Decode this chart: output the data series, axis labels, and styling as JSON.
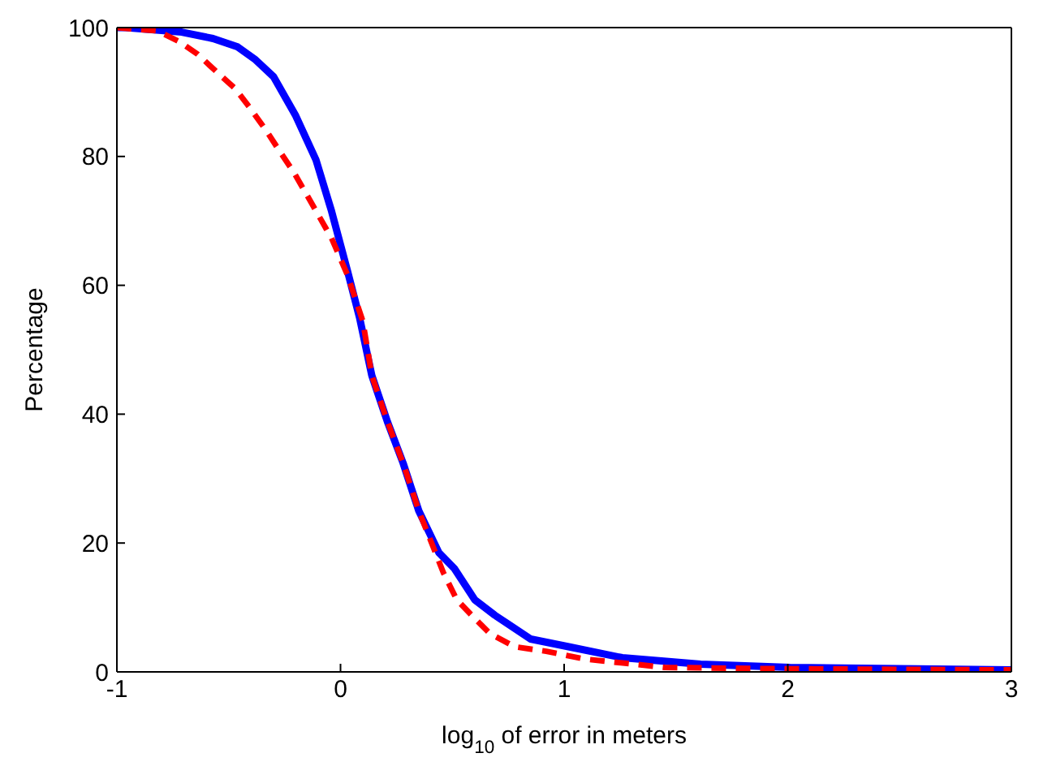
{
  "chart_data": {
    "type": "line",
    "xlabel": "log$_{10}$ of error in meters",
    "ylabel": "Percentage",
    "xlim": [
      -1,
      3
    ],
    "xticks": [
      -1,
      0,
      1,
      2,
      3
    ],
    "ylim": [
      0,
      100
    ],
    "yticks": [
      0,
      20,
      40,
      60,
      80,
      100
    ],
    "grid": false,
    "marker": "none",
    "series": [
      {
        "color": "#0000ff",
        "line_style": "solid",
        "x": [
          -1,
          -0.96,
          -0.71,
          -0.57,
          -0.46,
          -0.38,
          -0.3,
          -0.2,
          -0.11,
          -0.04,
          0.03,
          0.085,
          0.14,
          0.21,
          0.28,
          0.35,
          0.44,
          0.51,
          0.6,
          0.69,
          0.85,
          1.02,
          1.26,
          1.61,
          2.01,
          3
        ],
        "values": [
          100,
          100,
          99.3,
          98.3,
          97,
          95,
          92.4,
          86.3,
          79.5,
          71.5,
          62.4,
          55,
          46,
          38.8,
          32.4,
          25,
          18.5,
          16,
          11.2,
          8.8,
          5.1,
          3.9,
          2.2,
          1.2,
          0.7,
          0.3
        ]
      },
      {
        "color": "#ff0000",
        "line_style": "dashed",
        "x": [
          -1,
          -0.82,
          -0.72,
          -0.64,
          -0.55,
          -0.47,
          -0.4,
          -0.33,
          -0.27,
          -0.21,
          -0.14,
          -0.04,
          0.03,
          0.1,
          0.14,
          0.21,
          0.28,
          0.35,
          0.46,
          0.52,
          0.6,
          0.67,
          0.78,
          0.92,
          1.09,
          1.45,
          1.89,
          3
        ],
        "values": [
          100,
          99.5,
          97.8,
          95.9,
          93,
          90.5,
          87.3,
          83.9,
          80.7,
          77.6,
          73.4,
          67.3,
          61.7,
          54.4,
          46,
          38.8,
          32.4,
          25,
          15.4,
          11.2,
          8.3,
          5.9,
          3.9,
          3.2,
          2,
          0.7,
          0.5,
          0.3
        ]
      }
    ]
  }
}
